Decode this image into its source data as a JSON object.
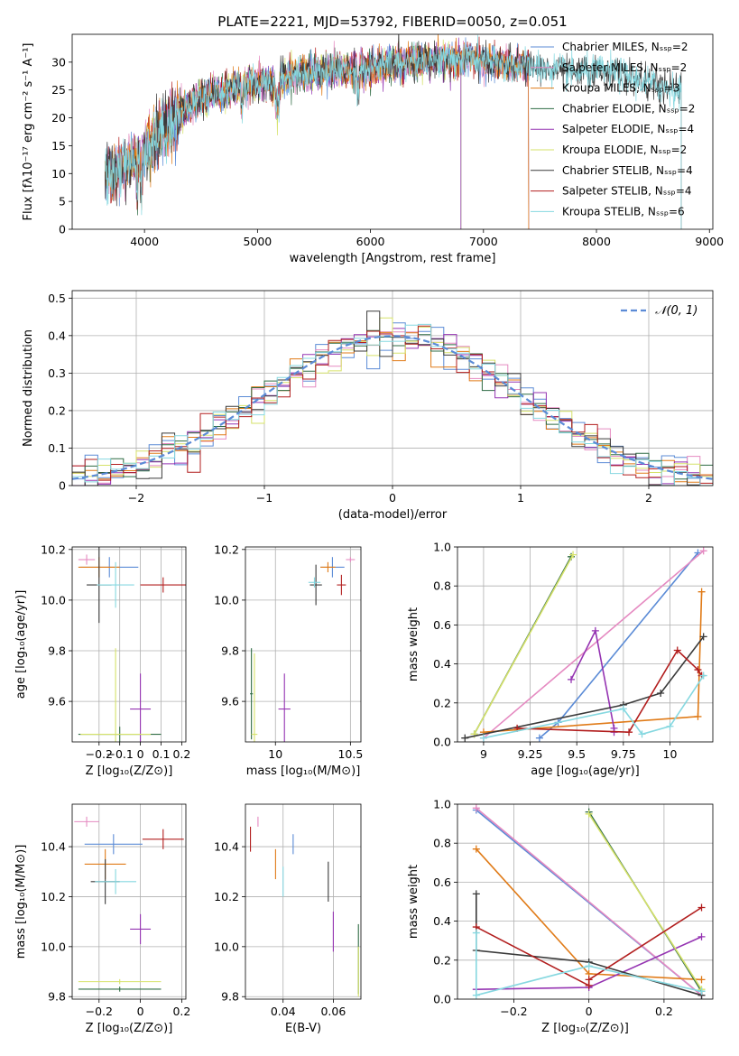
{
  "colors": {
    "Chabrier MILES": "#5b8bd6",
    "Salpeter MILES": "#e58ac1",
    "Kroupa MILES": "#e07b18",
    "Chabrier ELODIE": "#2f6b44",
    "Salpeter ELODIE": "#9534b2",
    "Kroupa ELODIE": "#d6e26a",
    "Chabrier STELIB": "#3a3a3a",
    "Salpeter STELIB": "#b21e1e",
    "Kroupa STELIB": "#86d8e0"
  },
  "chart_data": [
    {
      "id": "spectrum",
      "type": "line",
      "title": "PLATE=2221, MJD=53792, FIBERID=0050, z=0.051",
      "xlabel": "wavelength [Angstrom, rest frame]",
      "ylabel": "Flux [fλ10⁻¹⁷ erg cm⁻² s⁻¹ A⁻¹]",
      "xlim": [
        3360,
        9030
      ],
      "ylim": [
        0,
        35
      ],
      "xticks": [
        4000,
        5000,
        6000,
        7000,
        8000,
        9000
      ],
      "yticks": [
        0,
        5,
        10,
        15,
        20,
        25,
        30
      ],
      "grid": false,
      "legend_position": "upper right",
      "series": [
        {
          "name": "Chabrier MILES, Nₛₛₚ=2",
          "key": "Chabrier MILES"
        },
        {
          "name": "Salpeter MILES, Nₛₛₚ=2",
          "key": "Salpeter MILES"
        },
        {
          "name": "Kroupa MILES, Nₛₛₚ=3",
          "key": "Kroupa MILES"
        },
        {
          "name": "Chabrier ELODIE, Nₛₛₚ=2",
          "key": "Chabrier ELODIE"
        },
        {
          "name": "Salpeter ELODIE, Nₛₛₚ=4",
          "key": "Salpeter ELODIE"
        },
        {
          "name": "Kroupa ELODIE, Nₛₛₚ=2",
          "key": "Kroupa ELODIE"
        },
        {
          "name": "Chabrier STELIB, Nₛₛₚ=4",
          "key": "Chabrier STELIB"
        },
        {
          "name": "Salpeter STELIB, Nₛₛₚ=4",
          "key": "Salpeter STELIB"
        },
        {
          "name": "Kroupa STELIB, Nₛₛₚ=6",
          "key": "Kroupa STELIB"
        }
      ],
      "continuum": {
        "x": [
          3650,
          3800,
          3950,
          4100,
          4300,
          4500,
          4800,
          5100,
          5400,
          5700,
          6000,
          6300,
          6600,
          6900,
          7200,
          7500,
          7800,
          8100,
          8400,
          8700
        ],
        "y": [
          10,
          11,
          13,
          16.5,
          20.5,
          23.5,
          25.5,
          26.5,
          28,
          28.5,
          29,
          30,
          30.5,
          30.5,
          29.5,
          29,
          28,
          28.5,
          26.5,
          25
        ]
      },
      "series_ranges": {
        "Chabrier ELODIE": [
          3900,
          6800
        ],
        "Kroupa ELODIE": [
          3900,
          6800
        ],
        "Salpeter ELODIE": [
          3900,
          6800
        ],
        "Chabrier STELIB": [
          3650,
          8750
        ],
        "Kroupa STELIB": [
          3650,
          8750
        ],
        "Salpeter STELIB": [
          3650,
          7400
        ],
        "Chabrier MILES": [
          3650,
          7400
        ],
        "Salpeter MILES": [
          3650,
          7400
        ],
        "Kroupa MILES": [
          3650,
          7400
        ]
      }
    },
    {
      "id": "residuals",
      "type": "histogram",
      "xlabel": "(data-model)/error",
      "ylabel": "Normed distribution",
      "xlim": [
        -2.5,
        2.5
      ],
      "ylim": [
        0,
        0.52
      ],
      "xticks": [
        -2,
        -1,
        0,
        1,
        2
      ],
      "yticks": [
        0.0,
        0.1,
        0.2,
        0.3,
        0.4,
        0.5
      ],
      "grid": true,
      "legend_position": "upper right",
      "reference": {
        "name": "𝒩(0, 1)",
        "color": "#5b8bd6",
        "mean": 0,
        "sigma": 1
      },
      "bin_width": 0.1
    },
    {
      "id": "age-vs-Z",
      "type": "errorbar",
      "xlabel": "Z [log₁₀(Z/Z⊙)]",
      "ylabel": "age  [log₁₀(age/yr)]",
      "xlim": [
        -0.33,
        0.22
      ],
      "ylim": [
        9.44,
        10.21
      ],
      "xticks": [
        -0.2,
        -0.1,
        0.0,
        0.1,
        0.2
      ],
      "yticks": [
        9.6,
        9.8,
        10.0,
        10.2
      ],
      "grid": true,
      "points": [
        {
          "key": "Chabrier MILES",
          "x": -0.15,
          "y": 10.13,
          "xerr": 0.14,
          "yerr": 0.04
        },
        {
          "key": "Salpeter MILES",
          "x": -0.26,
          "y": 10.16,
          "xerr": 0.04,
          "yerr": 0.02
        },
        {
          "key": "Kroupa MILES",
          "x": -0.2,
          "y": 10.13,
          "xerr": 0.1,
          "yerr": 0.04
        },
        {
          "key": "Chabrier ELODIE",
          "x": -0.1,
          "y": 9.47,
          "xerr": 0.2,
          "yerr": 0.03
        },
        {
          "key": "Salpeter ELODIE",
          "x": 0.0,
          "y": 9.57,
          "xerr": 0.05,
          "yerr": 0.14
        },
        {
          "key": "Kroupa ELODIE",
          "x": -0.12,
          "y": 9.47,
          "xerr": 0.17,
          "yerr": 0.34
        },
        {
          "key": "Chabrier STELIB",
          "x": -0.2,
          "y": 10.06,
          "xerr": 0.06,
          "yerr": 0.15
        },
        {
          "key": "Salpeter STELIB",
          "x": 0.11,
          "y": 10.06,
          "xerr": 0.11,
          "yerr": 0.03
        },
        {
          "key": "Kroupa STELIB",
          "x": -0.12,
          "y": 10.06,
          "xerr": 0.09,
          "yerr": 0.09
        }
      ]
    },
    {
      "id": "age-vs-mass",
      "type": "errorbar",
      "xlabel": "mass [log₁₀(M/M⊙)]",
      "ylabel": "",
      "xlim": [
        9.8,
        10.57
      ],
      "ylim": [
        9.44,
        10.21
      ],
      "xticks": [
        10.0,
        10.5
      ],
      "yticks": [
        9.6,
        9.8,
        10.0,
        10.2
      ],
      "grid": true,
      "points": [
        {
          "key": "Chabrier MILES",
          "x": 10.38,
          "y": 10.13,
          "xerr": 0.08,
          "yerr": 0.04
        },
        {
          "key": "Salpeter MILES",
          "x": 10.5,
          "y": 10.16,
          "xerr": 0.03,
          "yerr": 0.01
        },
        {
          "key": "Kroupa MILES",
          "x": 10.35,
          "y": 10.13,
          "xerr": 0.05,
          "yerr": 0.02
        },
        {
          "key": "Chabrier ELODIE",
          "x": 9.84,
          "y": 9.63,
          "xerr": 0.01,
          "yerr": 0.18
        },
        {
          "key": "Salpeter ELODIE",
          "x": 10.06,
          "y": 9.57,
          "xerr": 0.04,
          "yerr": 0.14
        },
        {
          "key": "Kroupa ELODIE",
          "x": 9.86,
          "y": 9.47,
          "xerr": 0.02,
          "yerr": 0.32
        },
        {
          "key": "Chabrier STELIB",
          "x": 10.27,
          "y": 10.06,
          "xerr": 0.04,
          "yerr": 0.08
        },
        {
          "key": "Salpeter STELIB",
          "x": 10.44,
          "y": 10.06,
          "xerr": 0.03,
          "yerr": 0.04
        },
        {
          "key": "Kroupa STELIB",
          "x": 10.26,
          "y": 10.07,
          "xerr": 0.04,
          "yerr": 0.02
        }
      ]
    },
    {
      "id": "mass-weight-vs-age",
      "type": "line",
      "xlabel": "age  [log₁₀(age/yr)]",
      "ylabel": "mass weight",
      "xlim": [
        8.86,
        10.23
      ],
      "ylim": [
        0,
        1
      ],
      "xticks": [
        9.0,
        9.25,
        9.5,
        9.75,
        10.0
      ],
      "yticks": [
        0.0,
        0.2,
        0.4,
        0.6,
        0.8,
        1.0
      ],
      "grid": true,
      "series": [
        {
          "key": "Chabrier MILES",
          "x": [
            9.3,
            9.4,
            10.15
          ],
          "y": [
            0.02,
            0.1,
            0.97
          ]
        },
        {
          "key": "Salpeter MILES",
          "x": [
            9.0,
            10.18
          ],
          "y": [
            0.02,
            0.98
          ]
        },
        {
          "key": "Kroupa MILES",
          "x": [
            9.0,
            10.15,
            10.17
          ],
          "y": [
            0.05,
            0.13,
            0.77
          ]
        },
        {
          "key": "Chabrier ELODIE",
          "x": [
            8.95,
            9.47
          ],
          "y": [
            0.04,
            0.95
          ]
        },
        {
          "key": "Salpeter ELODIE",
          "x": [
            9.47,
            9.6,
            9.7,
            9.7
          ],
          "y": [
            0.32,
            0.57,
            0.07,
            0.05
          ]
        },
        {
          "key": "Kroupa ELODIE",
          "x": [
            8.95,
            9.48
          ],
          "y": [
            0.04,
            0.96
          ]
        },
        {
          "key": "Chabrier STELIB",
          "x": [
            8.9,
            9.75,
            9.95,
            10.18
          ],
          "y": [
            0.02,
            0.19,
            0.25,
            0.54
          ]
        },
        {
          "key": "Salpeter STELIB",
          "x": [
            9.18,
            9.78,
            10.04,
            10.15,
            10.17
          ],
          "y": [
            0.07,
            0.05,
            0.47,
            0.37,
            0.34
          ]
        },
        {
          "key": "Kroupa STELIB",
          "x": [
            9.0,
            9.75,
            9.85,
            10.0,
            10.18
          ],
          "y": [
            0.02,
            0.17,
            0.04,
            0.08,
            0.34
          ]
        }
      ]
    },
    {
      "id": "mass-vs-Z",
      "type": "errorbar",
      "xlabel": "Z [log₁₀(Z/Z⊙)]",
      "ylabel": "mass [log₁₀(M/M⊙)]",
      "xlim": [
        -0.33,
        0.22
      ],
      "ylim": [
        9.79,
        10.57
      ],
      "xticks": [
        -0.2,
        0.0,
        0.2
      ],
      "yticks": [
        9.8,
        10.0,
        10.2,
        10.4
      ],
      "grid": true,
      "points": [
        {
          "key": "Chabrier MILES",
          "x": -0.13,
          "y": 10.41,
          "xerr": 0.14,
          "yerr": 0.04
        },
        {
          "key": "Salpeter MILES",
          "x": -0.26,
          "y": 10.5,
          "xerr": 0.06,
          "yerr": 0.02
        },
        {
          "key": "Kroupa MILES",
          "x": -0.17,
          "y": 10.33,
          "xerr": 0.1,
          "yerr": 0.06
        },
        {
          "key": "Chabrier ELODIE",
          "x": -0.1,
          "y": 9.83,
          "xerr": 0.2,
          "yerr": 0.01
        },
        {
          "key": "Salpeter ELODIE",
          "x": 0.0,
          "y": 10.07,
          "xerr": 0.05,
          "yerr": 0.06
        },
        {
          "key": "Kroupa ELODIE",
          "x": -0.1,
          "y": 9.86,
          "xerr": 0.2,
          "yerr": 0.01
        },
        {
          "key": "Chabrier STELIB",
          "x": -0.17,
          "y": 10.26,
          "xerr": 0.07,
          "yerr": 0.09
        },
        {
          "key": "Salpeter STELIB",
          "x": 0.11,
          "y": 10.43,
          "xerr": 0.1,
          "yerr": 0.04
        },
        {
          "key": "Kroupa STELIB",
          "x": -0.12,
          "y": 10.26,
          "xerr": 0.1,
          "yerr": 0.05
        }
      ]
    },
    {
      "id": "mass-vs-EBV",
      "type": "errorbar",
      "xlabel": "E(B-V)",
      "ylabel": "",
      "xlim": [
        0.025,
        0.071
      ],
      "ylim": [
        9.79,
        10.57
      ],
      "xticks": [
        0.04,
        0.06
      ],
      "yticks": [
        9.8,
        10.0,
        10.2,
        10.4
      ],
      "grid": true,
      "points": [
        {
          "key": "Chabrier MILES",
          "x": 0.044,
          "y": 10.41,
          "xerr": 0.0,
          "yerr": 0.04
        },
        {
          "key": "Salpeter MILES",
          "x": 0.03,
          "y": 10.5,
          "xerr": 0.0,
          "yerr": 0.02
        },
        {
          "key": "Kroupa MILES",
          "x": 0.037,
          "y": 10.33,
          "xerr": 0.0,
          "yerr": 0.06
        },
        {
          "key": "Chabrier ELODIE",
          "x": 0.07,
          "y": 9.95,
          "xerr": 0.0,
          "yerr": 0.14
        },
        {
          "key": "Salpeter ELODIE",
          "x": 0.06,
          "y": 10.06,
          "xerr": 0.0,
          "yerr": 0.08
        },
        {
          "key": "Kroupa ELODIE",
          "x": 0.07,
          "y": 9.9,
          "xerr": 0.0,
          "yerr": 0.1
        },
        {
          "key": "Chabrier STELIB",
          "x": 0.058,
          "y": 10.26,
          "xerr": 0.0,
          "yerr": 0.08
        },
        {
          "key": "Salpeter STELIB",
          "x": 0.027,
          "y": 10.43,
          "xerr": 0.0,
          "yerr": 0.05
        },
        {
          "key": "Kroupa STELIB",
          "x": 0.04,
          "y": 10.26,
          "xerr": 0.0,
          "yerr": 0.06
        }
      ]
    },
    {
      "id": "mass-weight-vs-Z",
      "type": "line",
      "xlabel": "Z [log₁₀(Z/Z⊙)]",
      "ylabel": "mass weight",
      "xlim": [
        -0.35,
        0.33
      ],
      "ylim": [
        0,
        1
      ],
      "xticks": [
        -0.2,
        0.0,
        0.2
      ],
      "yticks": [
        0.0,
        0.2,
        0.4,
        0.6,
        0.8,
        1.0
      ],
      "grid": true,
      "series": [
        {
          "key": "Chabrier MILES",
          "x": [
            -0.3,
            0.3
          ],
          "y": [
            0.97,
            0.02
          ]
        },
        {
          "key": "Salpeter MILES",
          "x": [
            -0.3,
            0.3
          ],
          "y": [
            0.98,
            0.02
          ]
        },
        {
          "key": "Kroupa MILES",
          "x": [
            -0.3,
            0.0,
            0.3
          ],
          "y": [
            0.77,
            0.13,
            0.1
          ]
        },
        {
          "key": "Chabrier ELODIE",
          "x": [
            0.0,
            0.3
          ],
          "y": [
            0.96,
            0.04
          ]
        },
        {
          "key": "Salpeter ELODIE",
          "x": [
            -0.3,
            0.0,
            0.3
          ],
          "y": [
            0.05,
            0.06,
            0.32
          ]
        },
        {
          "key": "Kroupa ELODIE",
          "x": [
            0.0,
            0.3
          ],
          "y": [
            0.95,
            0.05
          ]
        },
        {
          "key": "Chabrier STELIB",
          "x": [
            -0.3,
            -0.3,
            0.0,
            0.3
          ],
          "y": [
            0.54,
            0.25,
            0.19,
            0.02
          ]
        },
        {
          "key": "Salpeter STELIB",
          "x": [
            -0.3,
            0.0,
            0.0,
            0.3
          ],
          "y": [
            0.37,
            0.07,
            0.1,
            0.47
          ]
        },
        {
          "key": "Kroupa STELIB",
          "x": [
            -0.3,
            -0.3,
            0.0,
            0.3
          ],
          "y": [
            0.34,
            0.02,
            0.17,
            0.04
          ]
        }
      ]
    }
  ]
}
